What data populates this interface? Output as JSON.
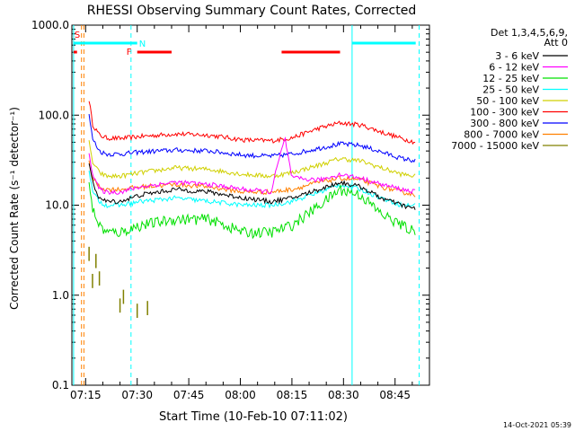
{
  "chart_data": {
    "type": "line",
    "title": "RHESSI Observing Summary Count Rates, Corrected",
    "xlabel": "Start Time (10-Feb-10 07:11:02)",
    "ylabel": "Corrected Count Rate (s⁻¹ detector⁻¹)",
    "yscale": "log",
    "ylim": [
      0.1,
      1000
    ],
    "xlim_minutes": [
      0,
      104
    ],
    "y_ticks": [
      "0.1",
      "1.0",
      "10.0",
      "100.0",
      "1000.0"
    ],
    "x_ticks": [
      {
        "t": 4,
        "label": "07:15"
      },
      {
        "t": 19,
        "label": "07:30"
      },
      {
        "t": 34,
        "label": "07:45"
      },
      {
        "t": 49,
        "label": "08:00"
      },
      {
        "t": 64,
        "label": "08:15"
      },
      {
        "t": 79,
        "label": "08:30"
      },
      {
        "t": 94,
        "label": "08:45"
      }
    ],
    "legend_header": [
      "Det 1,3,4,5,6,9,",
      "Att 0"
    ],
    "legend_position": "right",
    "series": [
      {
        "name": "3 - 6 keV",
        "color": "#000000",
        "t": [
          5,
          6,
          8,
          10,
          14,
          20,
          30,
          40,
          50,
          58,
          64,
          72,
          78,
          84,
          90,
          96,
          100
        ],
        "y": [
          30,
          18,
          12,
          11,
          11,
          13,
          15,
          14,
          12,
          11,
          12,
          15,
          18,
          16,
          12,
          10,
          9
        ]
      },
      {
        "name": "6 - 12 keV",
        "color": "#ff00ff",
        "t": [
          5,
          6,
          8,
          10,
          14,
          20,
          30,
          40,
          50,
          58,
          60,
          62,
          64,
          72,
          78,
          84,
          90,
          96,
          100
        ],
        "y": [
          40,
          22,
          15,
          14,
          14,
          16,
          18,
          17,
          15,
          14,
          30,
          55,
          20,
          19,
          22,
          20,
          17,
          15,
          14
        ]
      },
      {
        "name": "12 - 25 keV",
        "color": "#00e000",
        "t": [
          5,
          6,
          8,
          10,
          14,
          20,
          30,
          40,
          50,
          58,
          64,
          72,
          78,
          84,
          90,
          96,
          100
        ],
        "y": [
          20,
          9,
          6,
          5,
          5,
          6,
          7,
          7,
          5,
          5,
          6,
          10,
          15,
          13,
          8,
          6,
          5
        ]
      },
      {
        "name": "25 - 50 keV",
        "color": "#00ffff",
        "t": [
          5,
          6,
          8,
          10,
          14,
          20,
          30,
          40,
          50,
          58,
          64,
          72,
          78,
          84,
          90,
          96,
          100
        ],
        "y": [
          25,
          14,
          11,
          10,
          10,
          11,
          12,
          11,
          10,
          10,
          11,
          14,
          17,
          15,
          12,
          10,
          10
        ]
      },
      {
        "name": "50 - 100 keV",
        "color": "#d0d000",
        "t": [
          5,
          6,
          8,
          10,
          14,
          20,
          30,
          40,
          50,
          58,
          64,
          72,
          78,
          84,
          90,
          96,
          100
        ],
        "y": [
          50,
          30,
          23,
          21,
          21,
          23,
          26,
          25,
          22,
          21,
          23,
          28,
          33,
          31,
          26,
          22,
          21
        ]
      },
      {
        "name": "100 - 300 keV",
        "color": "#ff0000",
        "t": [
          5,
          6,
          8,
          10,
          14,
          20,
          30,
          40,
          50,
          58,
          64,
          72,
          78,
          84,
          90,
          96,
          100
        ],
        "y": [
          150,
          80,
          60,
          56,
          55,
          58,
          62,
          60,
          53,
          52,
          56,
          72,
          82,
          78,
          65,
          55,
          50
        ]
      },
      {
        "name": "300 - 800 keV",
        "color": "#0000ff",
        "t": [
          5,
          6,
          8,
          10,
          14,
          20,
          30,
          40,
          50,
          58,
          64,
          72,
          78,
          84,
          90,
          96,
          100
        ],
        "y": [
          100,
          55,
          40,
          37,
          37,
          39,
          41,
          40,
          36,
          35,
          37,
          43,
          48,
          46,
          39,
          33,
          31
        ]
      },
      {
        "name": "800 - 7000 keV",
        "color": "#ff8000",
        "t": [
          5,
          6,
          8,
          10,
          14,
          20,
          30,
          40,
          50,
          58,
          64,
          72,
          78,
          84,
          90,
          96,
          100
        ],
        "y": [
          30,
          20,
          16,
          15,
          15,
          16,
          17,
          16,
          14,
          14,
          15,
          18,
          20,
          19,
          16,
          14,
          13
        ]
      },
      {
        "name": "7000 - 15000 keV",
        "color": "#808000",
        "t": [
          5,
          6,
          7,
          8,
          14,
          15,
          19,
          22
        ],
        "y": [
          3,
          1.5,
          2.5,
          1.6,
          0.8,
          1.0,
          0.7,
          0.75
        ]
      }
    ],
    "flag_bars": [
      {
        "label": "S",
        "color": "#ff0000",
        "t0": 0.5,
        "t1": 1.5
      },
      {
        "label": "N",
        "color": "#00ffff",
        "t0": 0.5,
        "t1": 19
      },
      {
        "label": "F",
        "color": "#ff0000",
        "t0": 19,
        "t1": 29
      },
      {
        "label": "",
        "color": "#ff0000",
        "t0": 61,
        "t1": 78
      },
      {
        "label": "",
        "color": "#00ffff",
        "t0": 81.5,
        "t1": 100
      }
    ],
    "vertical_markers": [
      {
        "t": 0.5,
        "color": "#00ffff",
        "style": "solid"
      },
      {
        "t": 2.8,
        "color": "#ff8000",
        "style": "dashed"
      },
      {
        "t": 3.5,
        "color": "#ff8000",
        "style": "dashed"
      },
      {
        "t": 17.2,
        "color": "#00ffff",
        "style": "dashed"
      },
      {
        "t": 81.5,
        "color": "#00ffff",
        "style": "solid"
      },
      {
        "t": 101,
        "color": "#00ffff",
        "style": "dashed"
      }
    ]
  },
  "footer": {
    "timestamp": "14-Oct-2021 05:39"
  }
}
